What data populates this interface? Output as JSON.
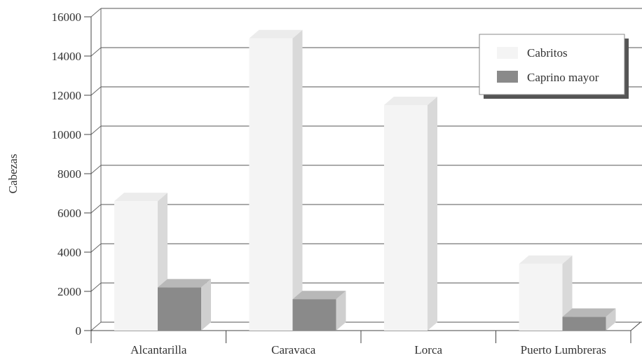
{
  "chart_data": {
    "type": "bar",
    "title": "",
    "xlabel": "",
    "ylabel": "Cabezas",
    "ylim": [
      0,
      16000
    ],
    "yticks": [
      0,
      2000,
      4000,
      6000,
      8000,
      10000,
      12000,
      14000,
      16000
    ],
    "ytick_labels": [
      "0",
      "2000",
      "4000",
      "6000",
      "8000",
      "10000",
      "12000",
      "14000",
      "16000"
    ],
    "categories": [
      "Alcantarilla",
      "Caravaca",
      "Lorca",
      "Puerto Lumbreras"
    ],
    "series": [
      {
        "name": "Cabritos",
        "values": [
          6600,
          14900,
          11500,
          3400
        ]
      },
      {
        "name": "Caprino mayor",
        "values": [
          2200,
          1600,
          0,
          700
        ]
      }
    ],
    "colors": {
      "Cabritos": {
        "front": "#f4f4f4",
        "side": "#d9d9d9",
        "top": "#ececec"
      },
      "Caprino mayor": {
        "front": "#8a8a8a",
        "side": "#cfcfcf",
        "top": "#b8b8b8"
      }
    },
    "grid": true,
    "three_d": true,
    "legend_position": "top-right"
  }
}
